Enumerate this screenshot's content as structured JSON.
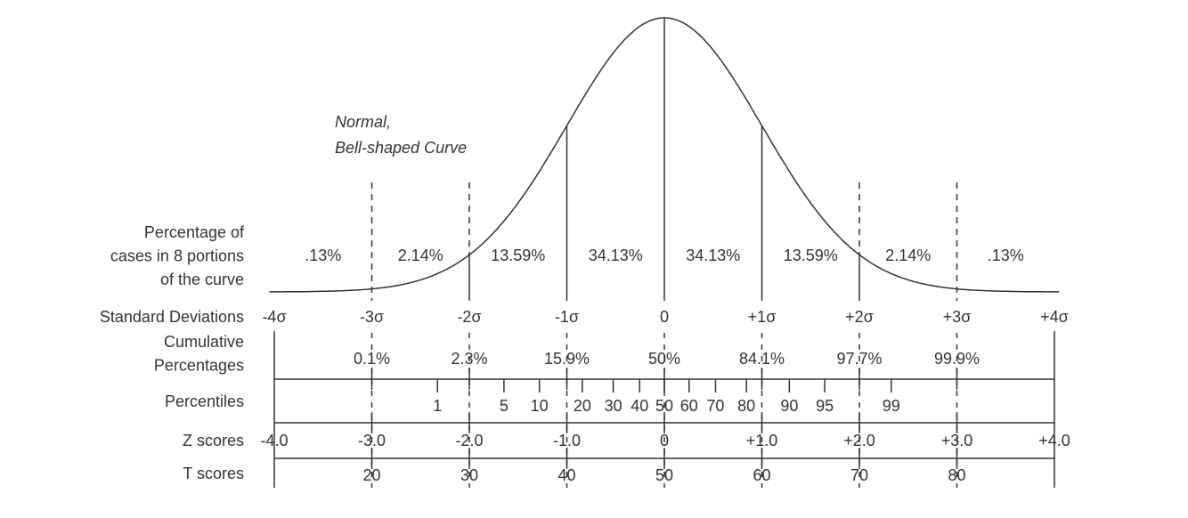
{
  "title_lines": [
    "Normal,",
    "Bell-shaped Curve"
  ],
  "row_labels": {
    "percentage": [
      "Percentage of",
      "cases in 8 portions",
      "of the curve"
    ],
    "sd": "Standard Deviations",
    "cumulative": [
      "Cumulative",
      "Percentages"
    ],
    "percentiles": "Percentiles",
    "z": "Z scores",
    "t": "T scores"
  },
  "portions": [
    ".13%",
    "2.14%",
    "13.59%",
    "34.13%",
    "34.13%",
    "13.59%",
    "2.14%",
    ".13%"
  ],
  "sd_labels": [
    "-4σ",
    "-3σ",
    "-2σ",
    "-1σ",
    "0",
    "+1σ",
    "+2σ",
    "+3σ",
    "+4σ"
  ],
  "cumulative": [
    "0.1%",
    "2.3%",
    "15.9%",
    "50%",
    "84.1%",
    "97.7%",
    "99.9%"
  ],
  "percentiles": [
    "1",
    "5",
    "10",
    "20",
    "30",
    "40",
    "50",
    "60",
    "70",
    "80",
    "90",
    "95",
    "99"
  ],
  "z_scores": [
    "-4.0",
    "-3.0",
    "-2.0",
    "-1.0",
    "0",
    "+1.0",
    "+2.0",
    "+3.0",
    "+4.0"
  ],
  "t_scores": [
    "20",
    "30",
    "40",
    "50",
    "60",
    "70",
    "80"
  ]
}
